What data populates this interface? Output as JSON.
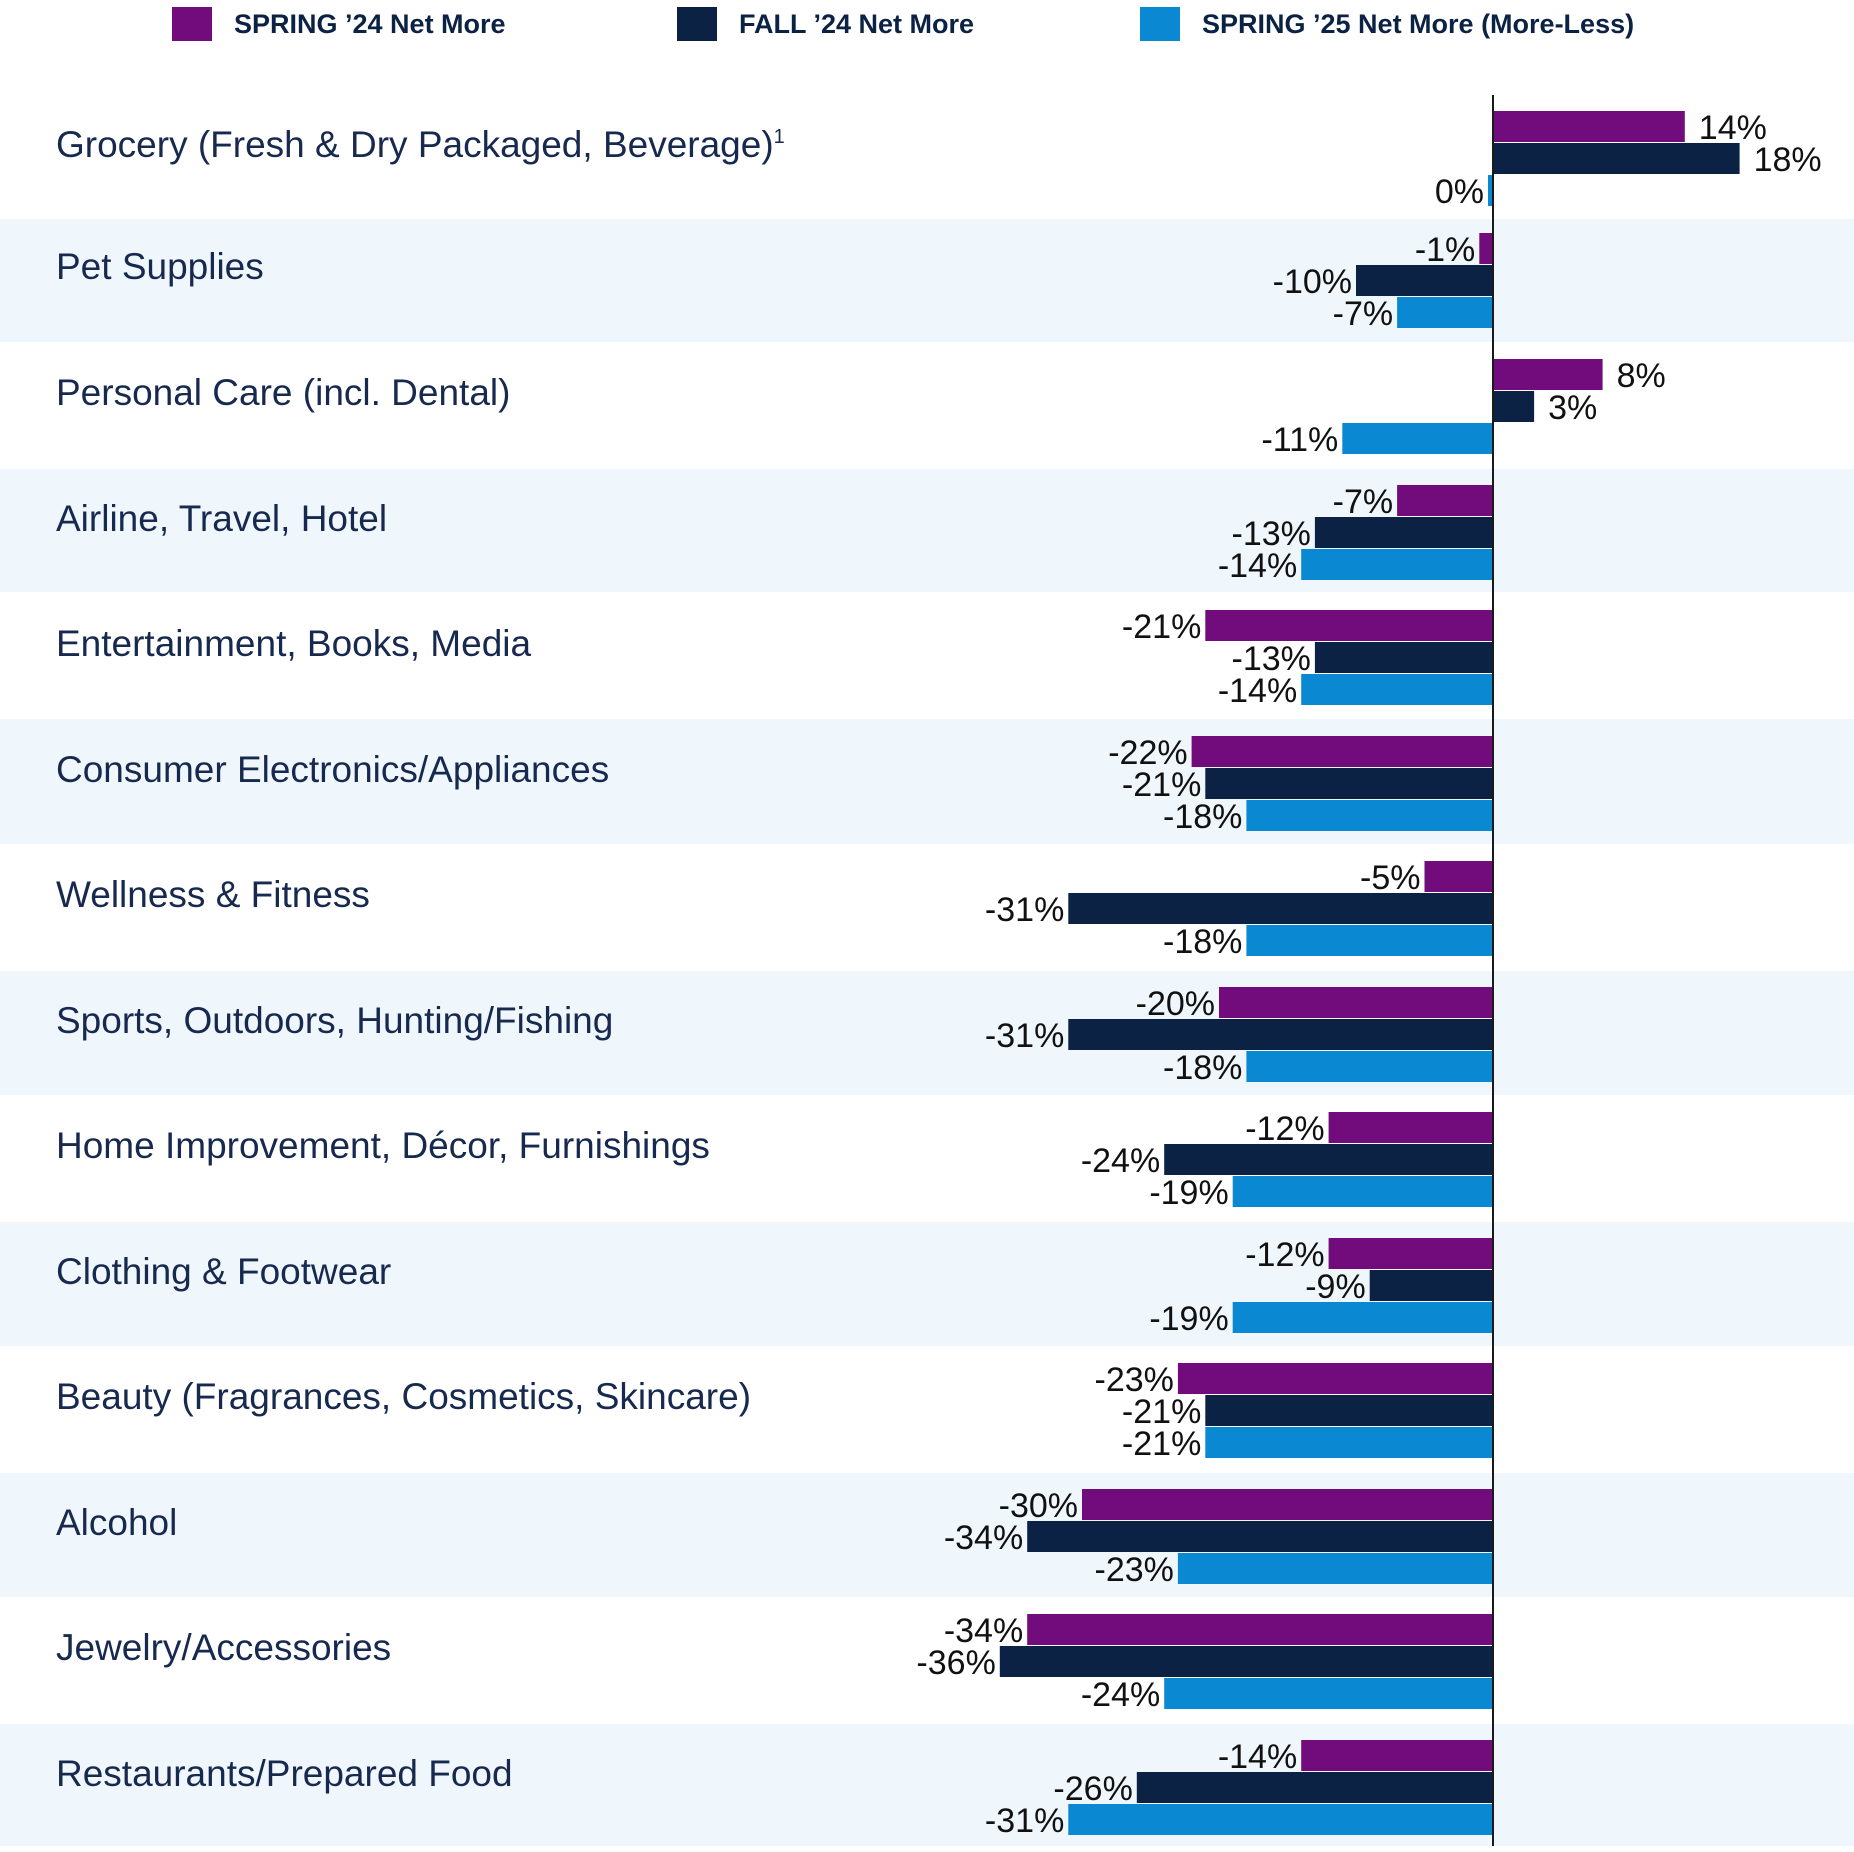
{
  "colors": {
    "spring24": "#720c7c",
    "fall24": "#0b2244",
    "spring25": "#0a89d2",
    "band": "#eff6fc",
    "axis": "#1a1a1a",
    "category_text": "#17294f"
  },
  "chart_data": {
    "type": "bar",
    "orientation": "horizontal",
    "series": [
      {
        "name": "SPRING ’24 Net More",
        "color": "#720c7c",
        "values": [
          14,
          -1,
          8,
          -7,
          -21,
          -22,
          -5,
          -20,
          -12,
          -12,
          -23,
          -30,
          -34,
          -14
        ]
      },
      {
        "name": "FALL ’24 Net More",
        "color": "#0b2244",
        "values": [
          18,
          -10,
          3,
          -13,
          -13,
          -21,
          -31,
          -31,
          -24,
          -9,
          -21,
          -34,
          -36,
          -26
        ]
      },
      {
        "name": "SPRING ’25 Net More (More-Less)",
        "color": "#0a89d2",
        "values": [
          0,
          -7,
          -11,
          -14,
          -14,
          -18,
          -18,
          -18,
          -19,
          -19,
          -21,
          -23,
          -24,
          -31
        ]
      }
    ],
    "categories": [
      "Grocery (Fresh & Dry Packaged, Beverage)",
      "Pet Supplies",
      "Personal Care (incl. Dental)",
      "Airline, Travel, Hotel",
      "Entertainment, Books, Media",
      "Consumer Electronics/Appliances",
      "Wellness & Fitness",
      "Sports, Outdoors, Hunting/Fishing",
      "Home Improvement, Décor, Furnishings",
      "Clothing & Footwear",
      "Beauty (Fragrances, Cosmetics, Skincare)",
      "Alcohol",
      "Jewelry/Accessories",
      "Restaurants/Prepared Food"
    ],
    "footnote_marker": "1",
    "value_suffix": "%",
    "xlim": [
      -40,
      20
    ],
    "grid": false,
    "legend_position": "top",
    "alternating_row_bands": true
  }
}
